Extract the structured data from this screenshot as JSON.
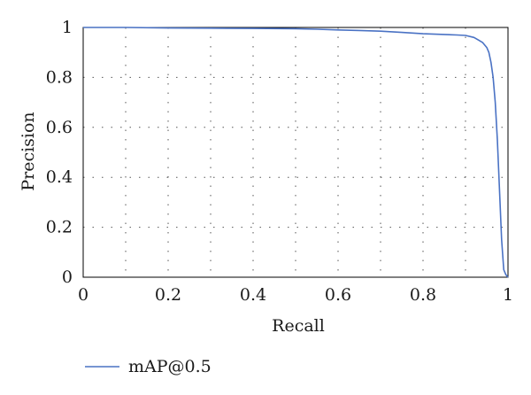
{
  "chart_data": {
    "type": "line",
    "xlabel": "Recall",
    "ylabel": "Precision",
    "xlim": [
      0,
      1
    ],
    "ylim": [
      0,
      1
    ],
    "x_ticks": [
      0,
      0.2,
      0.4,
      0.6,
      0.8,
      1
    ],
    "x_tick_labels": [
      "0",
      "0.2",
      "0.4",
      "0.6",
      "0.8",
      "1"
    ],
    "y_ticks": [
      0,
      0.2,
      0.4,
      0.6,
      0.8,
      1
    ],
    "y_tick_labels": [
      "0",
      "0.2",
      "0.4",
      "0.6",
      "0.8",
      "1"
    ],
    "grid": "dotted",
    "legend_position": "bottom-left",
    "series": [
      {
        "name": "mAP@0.5",
        "color": "#4a72c4",
        "x": [
          0,
          0.05,
          0.1,
          0.2,
          0.3,
          0.4,
          0.5,
          0.55,
          0.6,
          0.65,
          0.7,
          0.75,
          0.8,
          0.85,
          0.88,
          0.9,
          0.92,
          0.93,
          0.94,
          0.95,
          0.955,
          0.96,
          0.965,
          0.97,
          0.975,
          0.98,
          0.985,
          0.99,
          0.995,
          1.0
        ],
        "y": [
          1.0,
          1.0,
          1.0,
          0.998,
          0.997,
          0.996,
          0.995,
          0.993,
          0.99,
          0.988,
          0.985,
          0.98,
          0.975,
          0.972,
          0.97,
          0.968,
          0.96,
          0.95,
          0.94,
          0.92,
          0.9,
          0.86,
          0.8,
          0.7,
          0.55,
          0.35,
          0.15,
          0.03,
          0.01,
          0.0
        ]
      }
    ]
  }
}
